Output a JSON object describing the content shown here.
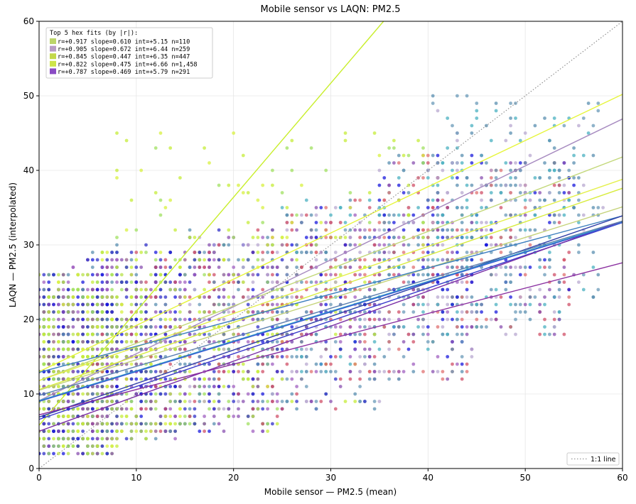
{
  "chart_data": {
    "type": "scatter",
    "title": "Mobile sensor vs LAQN: PM2.5",
    "xlabel": "Mobile sensor — PM2.5 (mean)",
    "ylabel": "LAQN — PM2.5 (interpolated)",
    "xlim": [
      0,
      60
    ],
    "ylim": [
      0,
      60
    ],
    "xticks": [
      0,
      10,
      20,
      30,
      40,
      50,
      60
    ],
    "yticks": [
      0,
      10,
      20,
      30,
      40,
      50,
      60
    ],
    "grid": true,
    "legend": {
      "title": "Top 5 hex fits (by |r|):",
      "placement": "top-left",
      "entries": [
        {
          "label": "r=+0.917  slope=0.610  int=+5.15  n=110",
          "color": "#bcd56a"
        },
        {
          "label": "r=+0.905  slope=0.672  int=+6.44  n=259",
          "color": "#b89cc6"
        },
        {
          "label": "r=+0.845  slope=0.447  int=+6.35  n=447",
          "color": "#c3d84a"
        },
        {
          "label": "r=+0.822  slope=0.475  int=+6.66  n=1,458",
          "color": "#cde44a"
        },
        {
          "label": "r=+0.787  slope=0.469  int=+5.79  n=291",
          "color": "#8a4bc4"
        }
      ]
    },
    "reference_legend": {
      "label": "1:1 line",
      "placement": "bottom-right"
    },
    "identity_line": {
      "from": [
        0,
        0
      ],
      "to": [
        60,
        60
      ],
      "style": "dotted",
      "color": "#888888"
    },
    "fit_lines": [
      {
        "slope": 1.53,
        "intercept": 5.8,
        "color": "#c8ee2a"
      },
      {
        "slope": 0.62,
        "intercept": 13.0,
        "color": "#e6f53a"
      },
      {
        "slope": 0.63,
        "intercept": 9.1,
        "color": "#a78bc0"
      },
      {
        "slope": 0.5,
        "intercept": 11.8,
        "color": "#c3d87a"
      },
      {
        "slope": 0.45,
        "intercept": 11.8,
        "color": "#e4f04a"
      },
      {
        "slope": 0.45,
        "intercept": 10.6,
        "color": "#d8ec3e"
      },
      {
        "slope": 0.41,
        "intercept": 10.5,
        "color": "#c5d37a"
      },
      {
        "slope": 0.35,
        "intercept": 12.9,
        "color": "#3d7fbf"
      },
      {
        "slope": 0.45,
        "intercept": 6.9,
        "color": "#2f3ea8"
      },
      {
        "slope": 0.44,
        "intercept": 6.6,
        "color": "#3a3acb"
      },
      {
        "slope": 0.4,
        "intercept": 9.1,
        "color": "#2da0c4"
      },
      {
        "slope": 0.47,
        "intercept": 5.0,
        "color": "#7a2fa6"
      },
      {
        "slope": 0.4,
        "intercept": 9.0,
        "color": "#3a5bd4"
      },
      {
        "slope": 0.34,
        "intercept": 7.2,
        "color": "#8a2fa0"
      },
      {
        "slope": 0.39,
        "intercept": 9.8,
        "color": "#5a7fb0"
      }
    ],
    "point_colors": [
      "#1a1adc",
      "#3030c8",
      "#c6ec3a",
      "#d8f040",
      "#b8e24a",
      "#5a8fb0",
      "#6a9ab8",
      "#8a50b0",
      "#a060c0",
      "#d05068",
      "#e07070",
      "#a0e060",
      "#4ab0c0",
      "#b8a8d0"
    ],
    "point_clusters": [
      {
        "x": [
          0,
          8
        ],
        "y": [
          2,
          24
        ],
        "n": 900,
        "colors": [
          0,
          1,
          2,
          3,
          4,
          7,
          11
        ]
      },
      {
        "x": [
          0,
          15
        ],
        "y": [
          4,
          27
        ],
        "n": 700,
        "colors": [
          0,
          1,
          2,
          3,
          4,
          5,
          7,
          8,
          11
        ]
      },
      {
        "x": [
          5,
          25
        ],
        "y": [
          5,
          30
        ],
        "n": 700,
        "colors": [
          0,
          1,
          2,
          3,
          5,
          7,
          8,
          9,
          11
        ]
      },
      {
        "x": [
          15,
          35
        ],
        "y": [
          8,
          32
        ],
        "n": 500,
        "colors": [
          1,
          2,
          5,
          6,
          7,
          8,
          9,
          13
        ]
      },
      {
        "x": [
          25,
          45
        ],
        "y": [
          12,
          36
        ],
        "n": 500,
        "colors": [
          0,
          5,
          6,
          7,
          8,
          9,
          10,
          12,
          13
        ]
      },
      {
        "x": [
          35,
          55
        ],
        "y": [
          18,
          42
        ],
        "n": 500,
        "colors": [
          0,
          5,
          6,
          7,
          9,
          10,
          12,
          13
        ]
      },
      {
        "x": [
          40,
          58
        ],
        "y": [
          22,
          50
        ],
        "n": 200,
        "colors": [
          5,
          6,
          12,
          13
        ]
      },
      {
        "x": [
          8,
          40
        ],
        "y": [
          30,
          45
        ],
        "n": 80,
        "colors": [
          2,
          3,
          11
        ]
      }
    ]
  }
}
